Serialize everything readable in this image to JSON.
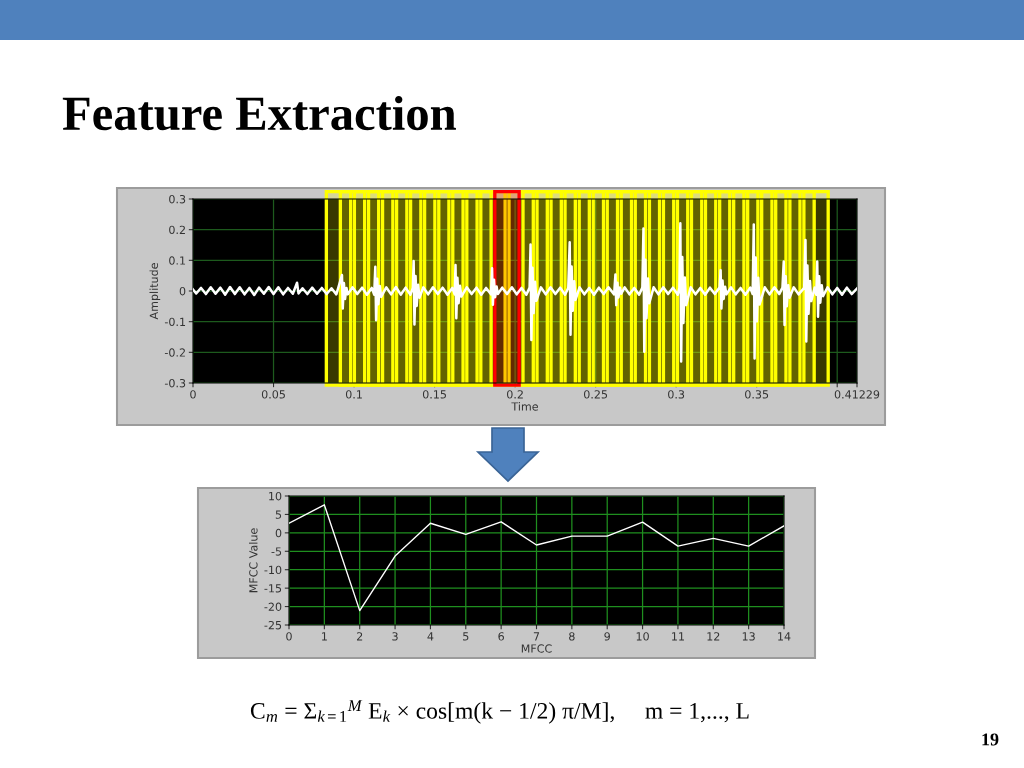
{
  "chart_data": [
    {
      "type": "line",
      "title": "Feature Extraction",
      "xlabel": "Time",
      "ylabel": "Amplitude",
      "x": [
        0,
        0.002,
        0.005,
        0.008,
        0.011,
        0.014,
        0.017,
        0.02,
        0.023,
        0.026,
        0.029,
        0.032,
        0.035,
        0.038,
        0.041,
        0.044,
        0.047,
        0.05,
        0.053,
        0.056,
        0.059,
        0.062,
        0.0646,
        0.0655,
        0.068,
        0.071,
        0.074,
        0.077,
        0.08,
        0.083,
        0.086,
        0.089,
        0.0925,
        0.093,
        0.0937,
        0.0944,
        0.0953,
        0.0961,
        0.099,
        0.102,
        0.105,
        0.108,
        0.111,
        0.1125,
        0.1132,
        0.1137,
        0.1144,
        0.1151,
        0.116,
        0.1168,
        0.12,
        0.123,
        0.126,
        0.129,
        0.132,
        0.135,
        0.1365,
        0.137,
        0.1375,
        0.1382,
        0.1389,
        0.1398,
        0.1406,
        0.143,
        0.146,
        0.149,
        0.152,
        0.155,
        0.158,
        0.161,
        0.1625,
        0.163,
        0.1635,
        0.1642,
        0.1649,
        0.1658,
        0.1666,
        0.17,
        0.173,
        0.176,
        0.179,
        0.182,
        0.185,
        0.1857,
        0.1862,
        0.1869,
        0.1876,
        0.1885,
        0.1893,
        0.192,
        0.195,
        0.198,
        0.201,
        0.204,
        0.207,
        0.209,
        0.2096,
        0.2101,
        0.2108,
        0.2115,
        0.2124,
        0.2132,
        0.216,
        0.219,
        0.222,
        0.225,
        0.228,
        0.231,
        0.233,
        0.2339,
        0.2344,
        0.2351,
        0.2358,
        0.2367,
        0.2375,
        0.24,
        0.243,
        0.246,
        0.249,
        0.252,
        0.255,
        0.258,
        0.2615,
        0.2623,
        0.2628,
        0.2635,
        0.2642,
        0.2651,
        0.2659,
        0.268,
        0.271,
        0.274,
        0.277,
        0.279,
        0.2797,
        0.2802,
        0.2809,
        0.2816,
        0.2825,
        0.2833,
        0.286,
        0.289,
        0.292,
        0.295,
        0.298,
        0.301,
        0.302,
        0.3026,
        0.3031,
        0.3038,
        0.3045,
        0.3054,
        0.3062,
        0.309,
        0.312,
        0.315,
        0.318,
        0.321,
        0.324,
        0.327,
        0.3276,
        0.3281,
        0.3288,
        0.3295,
        0.3304,
        0.3312,
        0.334,
        0.337,
        0.34,
        0.343,
        0.346,
        0.3475,
        0.3482,
        0.3487,
        0.3494,
        0.3501,
        0.351,
        0.3518,
        0.355,
        0.358,
        0.361,
        0.364,
        0.366,
        0.3668,
        0.3673,
        0.368,
        0.3687,
        0.3696,
        0.3704,
        0.373,
        0.376,
        0.3795,
        0.3803,
        0.3808,
        0.3815,
        0.3822,
        0.3831,
        0.3839,
        0.386,
        0.387,
        0.3876,
        0.3881,
        0.3888,
        0.3895,
        0.3904,
        0.3912,
        0.394,
        0.397,
        0.4,
        0.403,
        0.406,
        0.409,
        0.41229
      ],
      "series": [
        {
          "color": "#ffffff",
          "values": [
            0.005,
            -0.008,
            0.01,
            -0.01,
            0.012,
            -0.009,
            0.011,
            -0.012,
            0.013,
            -0.01,
            0.012,
            -0.011,
            0.01,
            -0.013,
            0.011,
            -0.009,
            0.013,
            -0.01,
            0.012,
            -0.011,
            0.01,
            -0.009,
            0.027,
            -0.008,
            0.009,
            -0.01,
            0.011,
            -0.009,
            0.01,
            -0.01,
            0.009,
            -0.011,
            0.052,
            -0.057,
            0.026,
            -0.026,
            0.01,
            -0.011,
            0.012,
            -0.01,
            0.011,
            -0.012,
            0.01,
            -0.012,
            0.079,
            -0.095,
            0.04,
            -0.043,
            0.016,
            -0.019,
            0.012,
            -0.011,
            0.013,
            -0.012,
            0.011,
            -0.012,
            0.01,
            0.098,
            -0.109,
            0.049,
            -0.049,
            0.02,
            -0.022,
            0.012,
            -0.011,
            0.012,
            -0.01,
            0.011,
            -0.012,
            0.01,
            -0.011,
            0.085,
            -0.089,
            0.043,
            -0.04,
            0.017,
            -0.018,
            0.012,
            -0.01,
            0.011,
            -0.012,
            0.01,
            -0.011,
            0.074,
            -0.045,
            0.037,
            -0.02,
            0.015,
            -0.01,
            0.011,
            -0.01,
            0.012,
            -0.011,
            0.01,
            -0.012,
            0.011,
            0.152,
            -0.16,
            0.076,
            -0.072,
            0.03,
            -0.032,
            0.012,
            -0.011,
            0.012,
            -0.01,
            0.011,
            -0.012,
            0.01,
            0.159,
            -0.143,
            0.08,
            -0.064,
            0.032,
            -0.029,
            0.012,
            -0.011,
            0.01,
            -0.012,
            0.011,
            -0.01,
            0.012,
            -0.011,
            0.054,
            -0.046,
            0.027,
            -0.021,
            0.011,
            -0.009,
            0.012,
            -0.011,
            0.01,
            -0.012,
            0.011,
            0.204,
            -0.198,
            0.102,
            -0.089,
            0.041,
            -0.04,
            0.012,
            -0.011,
            0.012,
            -0.01,
            0.011,
            -0.012,
            0.01,
            0.221,
            -0.23,
            0.111,
            -0.104,
            0.044,
            -0.046,
            0.012,
            -0.011,
            0.01,
            -0.012,
            0.011,
            -0.01,
            0.012,
            0.068,
            -0.057,
            0.034,
            -0.026,
            0.014,
            -0.011,
            0.012,
            -0.011,
            0.01,
            -0.012,
            0.011,
            -0.01,
            0.217,
            -0.22,
            0.109,
            -0.099,
            0.043,
            -0.044,
            0.012,
            -0.011,
            0.012,
            -0.01,
            0.011,
            0.096,
            -0.111,
            0.048,
            -0.05,
            0.019,
            -0.022,
            0.012,
            -0.011,
            0.01,
            0.166,
            -0.165,
            0.083,
            -0.074,
            0.033,
            -0.033,
            0.011,
            -0.012,
            0.096,
            -0.084,
            0.048,
            -0.038,
            0.019,
            -0.017,
            0.012,
            -0.011,
            0.01,
            -0.012,
            0.011,
            -0.01,
            0.008
          ]
        }
      ],
      "xlim": [
        0,
        0.41229
      ],
      "xticks": [
        0,
        0.05,
        0.1,
        0.15,
        0.2,
        0.25,
        0.3,
        0.35,
        {
          "value": 0.4,
          "label": null
        },
        0.41229
      ],
      "ylim": [
        -0.3,
        0.3
      ],
      "yticks": [
        -0.3,
        -0.2,
        -0.1,
        0,
        0.1,
        0.2,
        0.3
      ],
      "grid": true,
      "bands": [
        {
          "axis": "x",
          "from": 0.0828,
          "to": 0.0979,
          "color": "#ffff00"
        },
        {
          "axis": "x",
          "from": 0.0915,
          "to": 0.1066,
          "color": "#ffff00"
        },
        {
          "axis": "x",
          "from": 0.1002,
          "to": 0.1153,
          "color": "#ffff00"
        },
        {
          "axis": "x",
          "from": 0.109,
          "to": 0.1241,
          "color": "#ffff00"
        },
        {
          "axis": "x",
          "from": 0.1177,
          "to": 0.1328,
          "color": "#ffff00"
        },
        {
          "axis": "x",
          "from": 0.1264,
          "to": 0.1415,
          "color": "#ffff00"
        },
        {
          "axis": "x",
          "from": 0.1351,
          "to": 0.1502,
          "color": "#ffff00"
        },
        {
          "axis": "x",
          "from": 0.1438,
          "to": 0.1589,
          "color": "#ffff00"
        },
        {
          "axis": "x",
          "from": 0.1526,
          "to": 0.1677,
          "color": "#ffff00"
        },
        {
          "axis": "x",
          "from": 0.1613,
          "to": 0.1764,
          "color": "#ffff00"
        },
        {
          "axis": "x",
          "from": 0.17,
          "to": 0.1851,
          "color": "#ffff00"
        },
        {
          "axis": "x",
          "from": 0.1787,
          "to": 0.1938,
          "color": "#ffff00"
        },
        {
          "axis": "x",
          "from": 0.1962,
          "to": 0.2113,
          "color": "#ffff00"
        },
        {
          "axis": "x",
          "from": 0.2049,
          "to": 0.22,
          "color": "#ffff00"
        },
        {
          "axis": "x",
          "from": 0.2136,
          "to": 0.2287,
          "color": "#ffff00"
        },
        {
          "axis": "x",
          "from": 0.2223,
          "to": 0.2374,
          "color": "#ffff00"
        },
        {
          "axis": "x",
          "from": 0.231,
          "to": 0.2461,
          "color": "#ffff00"
        },
        {
          "axis": "x",
          "from": 0.2398,
          "to": 0.2549,
          "color": "#ffff00"
        },
        {
          "axis": "x",
          "from": 0.2485,
          "to": 0.2636,
          "color": "#ffff00"
        },
        {
          "axis": "x",
          "from": 0.2572,
          "to": 0.2723,
          "color": "#ffff00"
        },
        {
          "axis": "x",
          "from": 0.2659,
          "to": 0.281,
          "color": "#ffff00"
        },
        {
          "axis": "x",
          "from": 0.2746,
          "to": 0.2897,
          "color": "#ffff00"
        },
        {
          "axis": "x",
          "from": 0.2834,
          "to": 0.2985,
          "color": "#ffff00"
        },
        {
          "axis": "x",
          "from": 0.2921,
          "to": 0.3072,
          "color": "#ffff00"
        },
        {
          "axis": "x",
          "from": 0.3008,
          "to": 0.3159,
          "color": "#ffff00"
        },
        {
          "axis": "x",
          "from": 0.3095,
          "to": 0.3246,
          "color": "#ffff00"
        },
        {
          "axis": "x",
          "from": 0.3182,
          "to": 0.3333,
          "color": "#ffff00"
        },
        {
          "axis": "x",
          "from": 0.327,
          "to": 0.3421,
          "color": "#ffff00"
        },
        {
          "axis": "x",
          "from": 0.3357,
          "to": 0.3508,
          "color": "#ffff00"
        },
        {
          "axis": "x",
          "from": 0.3444,
          "to": 0.3595,
          "color": "#ffff00"
        },
        {
          "axis": "x",
          "from": 0.3531,
          "to": 0.3682,
          "color": "#ffff00"
        },
        {
          "axis": "x",
          "from": 0.3618,
          "to": 0.3769,
          "color": "#ffff00"
        },
        {
          "axis": "x",
          "from": 0.3706,
          "to": 0.3857,
          "color": "#ffff00"
        },
        {
          "axis": "x",
          "from": 0.3793,
          "to": 0.3944,
          "color": "#ffff00"
        },
        {
          "axis": "x",
          "from": 0.1874,
          "to": 0.2025,
          "color": "#ff0000"
        }
      ]
    },
    {
      "type": "line",
      "xlabel": "MFCC",
      "ylabel": "MFCC Value",
      "x": [
        0,
        1,
        2,
        3,
        4,
        5,
        6,
        7,
        8,
        9,
        10,
        11,
        12,
        13,
        14
      ],
      "series": [
        {
          "color": "#ffffff",
          "values": [
            2.6,
            7.6,
            -21.1,
            -6.3,
            2.6,
            -0.4,
            3.0,
            -3.3,
            -0.9,
            -0.9,
            2.9,
            -3.6,
            -1.5,
            -3.6,
            1.9
          ]
        }
      ],
      "xlim": [
        0,
        14
      ],
      "xticks": [
        0,
        1,
        2,
        3,
        4,
        5,
        6,
        7,
        8,
        9,
        10,
        11,
        12,
        13,
        14
      ],
      "ylim": [
        -25,
        10
      ],
      "yticks": [
        -25,
        -20,
        -15,
        -10,
        -5,
        0,
        5,
        10
      ],
      "grid": true,
      "annotations": [
        "C$_{m}$ = Σ$_{k=1}$$^{M}$ E$_{k}$ × cos[m(k − 1/2) π/M],     m = 1,..., L",
        "19"
      ]
    }
  ]
}
